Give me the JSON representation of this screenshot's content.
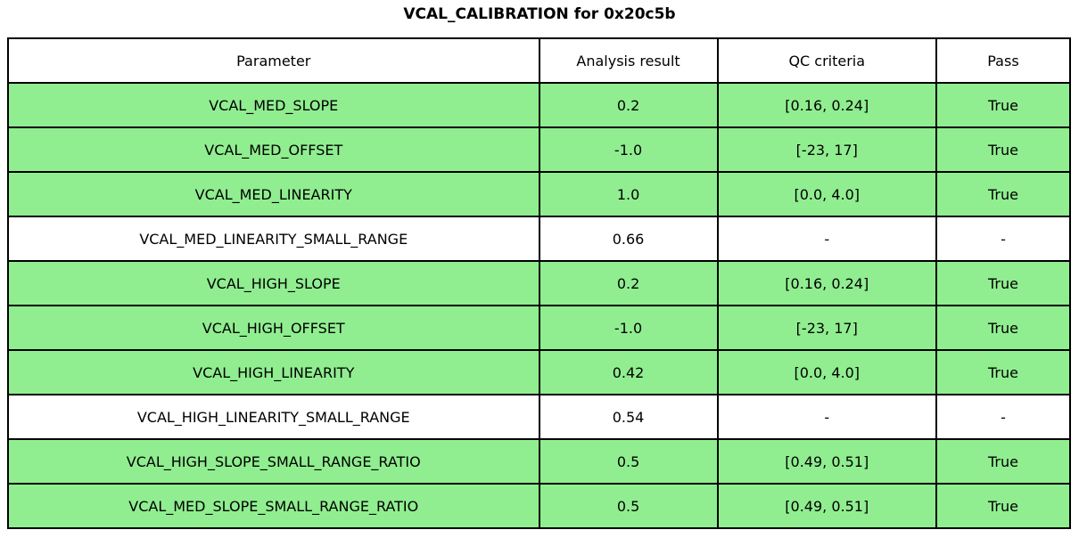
{
  "title": "VCAL_CALIBRATION for 0x20c5b",
  "colors": {
    "pass_row": "#90ee90",
    "neutral_row": "#ffffff",
    "border": "#000000",
    "text": "#000000"
  },
  "table": {
    "headers": [
      "Parameter",
      "Analysis result",
      "QC criteria",
      "Pass"
    ],
    "rows": [
      {
        "parameter": "VCAL_MED_SLOPE",
        "result": "0.2",
        "criteria": "[0.16, 0.24]",
        "pass": "True",
        "highlight": true
      },
      {
        "parameter": "VCAL_MED_OFFSET",
        "result": "-1.0",
        "criteria": "[-23, 17]",
        "pass": "True",
        "highlight": true
      },
      {
        "parameter": "VCAL_MED_LINEARITY",
        "result": "1.0",
        "criteria": "[0.0, 4.0]",
        "pass": "True",
        "highlight": true
      },
      {
        "parameter": "VCAL_MED_LINEARITY_SMALL_RANGE",
        "result": "0.66",
        "criteria": "-",
        "pass": "-",
        "highlight": false
      },
      {
        "parameter": "VCAL_HIGH_SLOPE",
        "result": "0.2",
        "criteria": "[0.16, 0.24]",
        "pass": "True",
        "highlight": true
      },
      {
        "parameter": "VCAL_HIGH_OFFSET",
        "result": "-1.0",
        "criteria": "[-23, 17]",
        "pass": "True",
        "highlight": true
      },
      {
        "parameter": "VCAL_HIGH_LINEARITY",
        "result": "0.42",
        "criteria": "[0.0, 4.0]",
        "pass": "True",
        "highlight": true
      },
      {
        "parameter": "VCAL_HIGH_LINEARITY_SMALL_RANGE",
        "result": "0.54",
        "criteria": "-",
        "pass": "-",
        "highlight": false
      },
      {
        "parameter": "VCAL_HIGH_SLOPE_SMALL_RANGE_RATIO",
        "result": "0.5",
        "criteria": "[0.49, 0.51]",
        "pass": "True",
        "highlight": true
      },
      {
        "parameter": "VCAL_MED_SLOPE_SMALL_RANGE_RATIO",
        "result": "0.5",
        "criteria": "[0.49, 0.51]",
        "pass": "True",
        "highlight": true
      }
    ]
  }
}
